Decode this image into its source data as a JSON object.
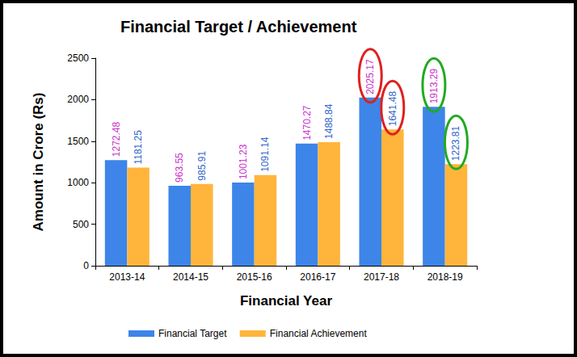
{
  "chart_data": {
    "type": "bar",
    "title": "Financial Target / Achievement",
    "x_label": "Financial Year",
    "y_label": "Amount in Crore (Rs)",
    "categories": [
      "2013-14",
      "2014-15",
      "2015-16",
      "2016-17",
      "2017-18",
      "2018-19"
    ],
    "series": [
      {
        "name": "Financial Target",
        "color": "#3d85e8",
        "values": [
          1272.48,
          963.55,
          1001.23,
          1470.27,
          2025.17,
          1913.29
        ]
      },
      {
        "name": "Financial Achievement",
        "color": "#ffb53c",
        "values": [
          1181.25,
          985.91,
          1091.14,
          1488.84,
          1641.48,
          1223.81
        ]
      }
    ],
    "ylim": [
      0,
      2500
    ],
    "yticks": [
      0,
      500,
      1000,
      1500,
      2000,
      2500
    ],
    "grid": false,
    "legend": "bottom",
    "data_labels": true
  }
}
